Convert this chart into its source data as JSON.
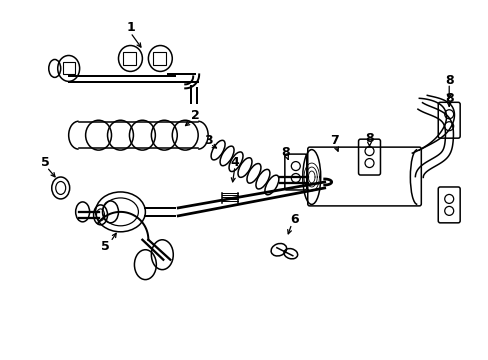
{
  "bg_color": "#ffffff",
  "line_color": "#000000",
  "lw": 1.1,
  "fig_width": 4.89,
  "fig_height": 3.6,
  "dpi": 100
}
